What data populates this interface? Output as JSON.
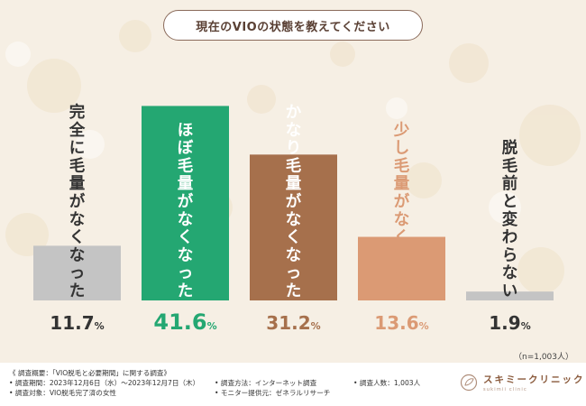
{
  "title": "現在のVIOの状態を教えてください",
  "chart_data": {
    "type": "bar",
    "categories": [
      "完全に毛量がなくなった",
      "ほぼ毛量がなくなった",
      "かなり毛量がなくなった",
      "少し毛量がなくなった",
      "脱毛前と変わらない"
    ],
    "values": [
      11.7,
      41.6,
      31.2,
      13.6,
      1.9
    ],
    "value_labels": [
      "11.7",
      "41.6",
      "31.2",
      "13.6",
      "1.9"
    ],
    "unit": "%",
    "colors": [
      "#c4c4c4",
      "#24a772",
      "#a6704c",
      "#db9a74",
      "#c4c4c4"
    ],
    "label_colors": [
      "#333333",
      "#ffffff",
      "#ffffff",
      "#db9a74",
      "#333333"
    ],
    "value_colors": [
      "#333333",
      "#24a772",
      "#a6704c",
      "#db9a74",
      "#333333"
    ],
    "ylim": [
      0,
      44
    ]
  },
  "sample_note": "（n=1,003人）",
  "footer": {
    "col1": [
      "《 調査概要：「VIO脱毛と必要期間」に関する調査》",
      "• 調査期間：2023年12月6日（水）〜2023年12月7日（木）",
      "• 調査対象：VIO脱毛完了済の女性"
    ],
    "col2": [
      "• 調査方法：インターネット調査",
      "• モニター提供元：ゼネラルリサーチ"
    ],
    "col3": [
      "• 調査人数：1,003人"
    ],
    "logo_main": "スキミークリニック",
    "logo_sub": "sukimii clinic"
  }
}
